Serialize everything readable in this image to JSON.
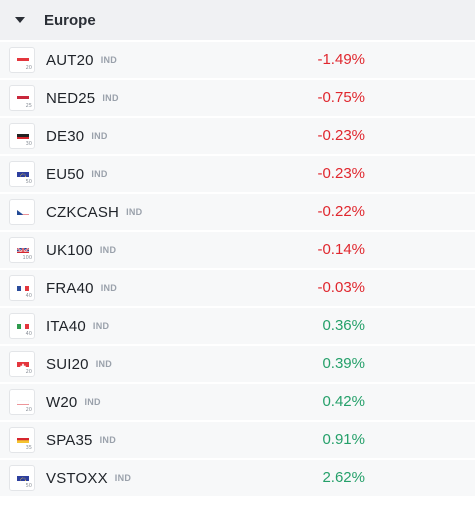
{
  "group": {
    "title": "Europe"
  },
  "colors": {
    "negative": "#e0272e",
    "positive": "#25a06a"
  },
  "instruments": [
    {
      "symbol": "AUT20",
      "tag": "IND",
      "flag_num": "20",
      "change": "-1.49%",
      "direction": "neg",
      "flag_icon": "austria-flag-icon"
    },
    {
      "symbol": "NED25",
      "tag": "IND",
      "flag_num": "25",
      "change": "-0.75%",
      "direction": "neg",
      "flag_icon": "netherlands-flag-icon"
    },
    {
      "symbol": "DE30",
      "tag": "IND",
      "flag_num": "30",
      "change": "-0.23%",
      "direction": "neg",
      "flag_icon": "germany-flag-icon"
    },
    {
      "symbol": "EU50",
      "tag": "IND",
      "flag_num": "50",
      "change": "-0.23%",
      "direction": "neg",
      "flag_icon": "eu-flag-icon"
    },
    {
      "symbol": "CZKCASH",
      "tag": "IND",
      "flag_num": "",
      "change": "-0.22%",
      "direction": "neg",
      "flag_icon": "czech-flag-icon"
    },
    {
      "symbol": "UK100",
      "tag": "IND",
      "flag_num": "100",
      "change": "-0.14%",
      "direction": "neg",
      "flag_icon": "uk-flag-icon"
    },
    {
      "symbol": "FRA40",
      "tag": "IND",
      "flag_num": "40",
      "change": "-0.03%",
      "direction": "neg",
      "flag_icon": "france-flag-icon"
    },
    {
      "symbol": "ITA40",
      "tag": "IND",
      "flag_num": "40",
      "change": "0.36%",
      "direction": "pos",
      "flag_icon": "italy-flag-icon"
    },
    {
      "symbol": "SUI20",
      "tag": "IND",
      "flag_num": "20",
      "change": "0.39%",
      "direction": "pos",
      "flag_icon": "switzerland-flag-icon"
    },
    {
      "symbol": "W20",
      "tag": "IND",
      "flag_num": "20",
      "change": "0.42%",
      "direction": "pos",
      "flag_icon": "poland-flag-icon"
    },
    {
      "symbol": "SPA35",
      "tag": "IND",
      "flag_num": "35",
      "change": "0.91%",
      "direction": "pos",
      "flag_icon": "spain-flag-icon"
    },
    {
      "symbol": "VSTOXX",
      "tag": "IND",
      "flag_num": "50",
      "change": "2.62%",
      "direction": "pos",
      "flag_icon": "eu-flag-icon"
    }
  ]
}
